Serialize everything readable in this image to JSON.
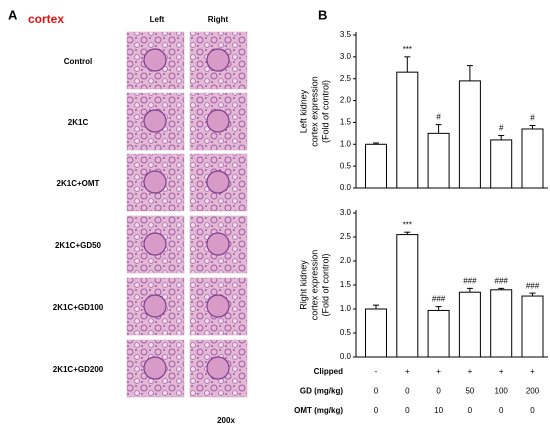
{
  "panel_a": {
    "label": "A",
    "title": "cortex",
    "columns": [
      "Left",
      "Right"
    ],
    "rows": [
      "Control",
      "2K1C",
      "2K1C+OMT",
      "2K1C+GD50",
      "2K1C+GD100",
      "2K1C+GD200"
    ],
    "magnification": "200x"
  },
  "panel_b": {
    "label": "B"
  },
  "chart_data": [
    {
      "type": "bar",
      "ylabel": [
        "Left kidney",
        "cortex expression",
        "(Fold of control)"
      ],
      "values": [
        1.0,
        2.65,
        1.25,
        2.45,
        1.1,
        1.35
      ],
      "errors": [
        0.03,
        0.35,
        0.2,
        0.35,
        0.1,
        0.08
      ],
      "annotations": [
        null,
        "***",
        "#",
        null,
        "#",
        "#"
      ],
      "color": "#ffffff",
      "ylim": [
        0,
        3.5
      ],
      "yticks": [
        {
          "value": 0,
          "label": "0.0"
        },
        0.5,
        {
          "value": 1,
          "label": "1.0"
        },
        1.5,
        {
          "value": 2,
          "label": "2.0"
        },
        2.5,
        {
          "value": 3,
          "label": "3.0"
        },
        3.5
      ]
    },
    {
      "type": "bar",
      "ylabel": [
        "Right kidney",
        "cortex expression",
        "(Fold of control)"
      ],
      "values": [
        1.0,
        2.55,
        0.97,
        1.35,
        1.4,
        1.27
      ],
      "errors": [
        0.08,
        0.05,
        0.08,
        0.08,
        0.03,
        0.06
      ],
      "annotations": [
        null,
        "***",
        "###",
        "###",
        "###",
        "###"
      ],
      "color": "#ffffff",
      "ylim": [
        0,
        3
      ],
      "yticks": [
        {
          "value": 0,
          "label": "0.0"
        },
        0.5,
        {
          "value": 1,
          "label": "1.0"
        },
        1.5,
        {
          "value": 2,
          "label": "2.0"
        },
        2.5,
        {
          "value": 3,
          "label": "3.0"
        }
      ]
    }
  ],
  "table": {
    "rows": [
      {
        "label": "Clipped",
        "cells": [
          "-",
          "+",
          "+",
          "+",
          "+",
          "+"
        ]
      },
      {
        "label": "GD (mg/kg)",
        "cells": [
          "0",
          "0",
          "0",
          "50",
          "100",
          "200"
        ]
      },
      {
        "label": "OMT (mg/kg)",
        "cells": [
          "0",
          "0",
          "10",
          "0",
          "0",
          "0"
        ]
      }
    ]
  }
}
